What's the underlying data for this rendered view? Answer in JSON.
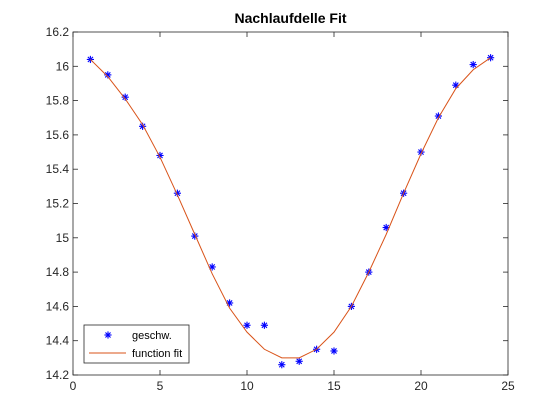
{
  "chart_data": {
    "type": "scatter",
    "title": "Nachlaufdelle Fit",
    "xlabel": "",
    "ylabel": "",
    "xlim": [
      0,
      25
    ],
    "ylim": [
      14.2,
      16.2
    ],
    "x_ticks": [
      "0",
      "5",
      "10",
      "15",
      "20",
      "25"
    ],
    "y_ticks": [
      "14.2",
      "14.4",
      "14.6",
      "14.8",
      "15",
      "15.2",
      "15.4",
      "15.6",
      "15.8",
      "16",
      "16.2"
    ],
    "grid": false,
    "legend_position": "bottom-left",
    "series": [
      {
        "name": "geschw.",
        "kind": "scatter",
        "marker": "asterisk",
        "color": "#0000ff",
        "x": [
          1,
          2,
          3,
          4,
          5,
          6,
          7,
          8,
          9,
          10,
          11,
          12,
          13,
          14,
          15,
          16,
          17,
          18,
          19,
          20,
          21,
          22,
          23,
          24
        ],
        "y": [
          16.04,
          15.95,
          15.82,
          15.65,
          15.48,
          15.26,
          15.01,
          14.83,
          14.62,
          14.49,
          14.49,
          14.26,
          14.28,
          14.35,
          14.34,
          14.6,
          14.8,
          15.06,
          15.26,
          15.5,
          15.71,
          15.89,
          16.01,
          16.05
        ]
      },
      {
        "name": "function fit",
        "kind": "line",
        "color": "#d95319",
        "x": [
          1,
          2,
          3,
          4,
          5,
          6,
          7,
          8,
          9,
          10,
          11,
          12,
          13,
          14,
          15,
          16,
          17,
          18,
          19,
          20,
          21,
          22,
          23,
          24
        ],
        "y": [
          16.04,
          15.94,
          15.81,
          15.66,
          15.47,
          15.25,
          15.02,
          14.79,
          14.59,
          14.45,
          14.35,
          14.3,
          14.3,
          14.35,
          14.45,
          14.6,
          14.8,
          15.02,
          15.26,
          15.49,
          15.7,
          15.87,
          15.98,
          16.05
        ]
      }
    ]
  }
}
